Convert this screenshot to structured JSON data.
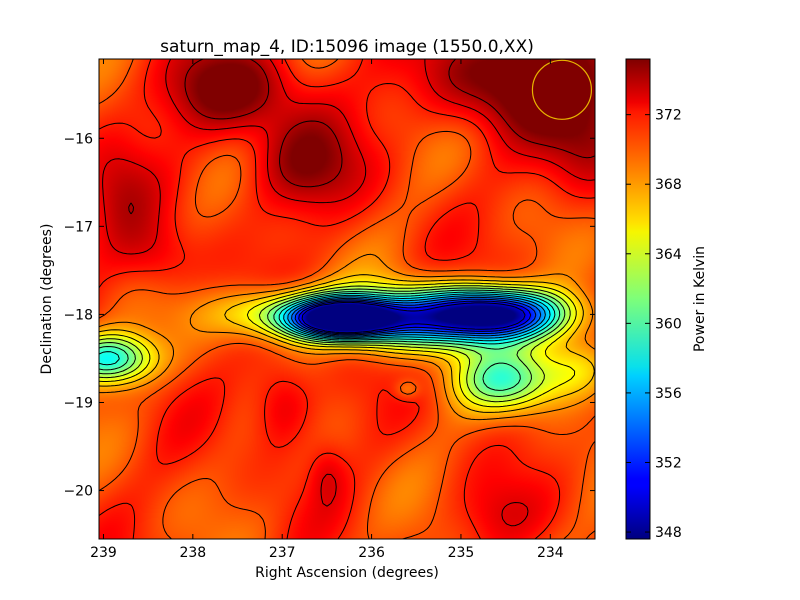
{
  "chart_data": {
    "type": "heatmap",
    "title": "saturn_map_4, ID:15096 image (1550.0,XX)",
    "xlabel": "Right Ascension (degrees)",
    "ylabel": "Declination (degrees)",
    "xlim": [
      239.05,
      233.5
    ],
    "ylim": [
      -20.55,
      -15.1
    ],
    "x_ticks": [
      239,
      238,
      237,
      236,
      235,
      234
    ],
    "y_ticks": [
      -16,
      -17,
      -18,
      -19,
      -20
    ],
    "colorbar": {
      "label": "Power in Kelvin",
      "range": [
        347.6,
        375.2
      ],
      "ticks": [
        348,
        352,
        356,
        360,
        364,
        368,
        372
      ],
      "colormap": "jet"
    },
    "contours": {
      "levels_start": 350,
      "levels_step": 1.5,
      "color": "#000000"
    },
    "annotation": {
      "type": "circle",
      "ra": 233.87,
      "dec": -15.45,
      "radius_deg": 0.33,
      "color": "#e8b400"
    },
    "features": [
      {
        "ra": 237.6,
        "dec": -15.45,
        "dra": 0.55,
        "ddec": 0.35,
        "amp": 5.5
      },
      {
        "ra": 236.75,
        "dec": -16.3,
        "dra": 0.45,
        "ddec": 0.4,
        "amp": 4.5
      },
      {
        "ra": 234.3,
        "dec": -15.3,
        "dra": 0.8,
        "ddec": 0.4,
        "amp": 6.5
      },
      {
        "ra": 233.6,
        "dec": -16.0,
        "dra": 0.4,
        "ddec": 0.45,
        "amp": 4.0
      },
      {
        "ra": 238.4,
        "dec": -17.35,
        "dra": 0.3,
        "ddec": 0.3,
        "amp": 2.6
      },
      {
        "ra": 238.85,
        "dec": -16.6,
        "dra": 0.3,
        "ddec": 0.5,
        "amp": 2.5
      },
      {
        "ra": 237.0,
        "dec": -19.0,
        "dra": 0.25,
        "ddec": 0.35,
        "amp": 3.5
      },
      {
        "ra": 236.5,
        "dec": -19.8,
        "dra": 0.15,
        "ddec": 0.25,
        "amp": 2.0
      },
      {
        "ra": 234.6,
        "dec": -20.3,
        "dra": 0.35,
        "ddec": 0.3,
        "amp": 1.8
      },
      {
        "ra": 236.3,
        "dec": -18.05,
        "dra": 0.4,
        "ddec": 0.15,
        "amp": -21.0
      },
      {
        "ra": 234.6,
        "dec": -18.0,
        "dra": 0.55,
        "ddec": 0.2,
        "amp": -21.0
      },
      {
        "ra": 235.5,
        "dec": -18.05,
        "dra": 0.6,
        "ddec": 0.25,
        "amp": -12.0
      },
      {
        "ra": 236.8,
        "dec": -18.0,
        "dra": 0.6,
        "ddec": 0.2,
        "amp": -9.0
      },
      {
        "ra": 234.5,
        "dec": -18.75,
        "dra": 0.4,
        "ddec": 0.25,
        "amp": -9.0
      },
      {
        "ra": 233.7,
        "dec": -18.6,
        "dra": 0.3,
        "ddec": 0.25,
        "amp": -5.0
      },
      {
        "ra": 238.95,
        "dec": -18.5,
        "dra": 0.35,
        "ddec": 0.2,
        "amp": -12.0
      },
      {
        "ra": 235.6,
        "dec": -18.85,
        "dra": 0.1,
        "ddec": 0.08,
        "amp": -2.5
      }
    ]
  }
}
